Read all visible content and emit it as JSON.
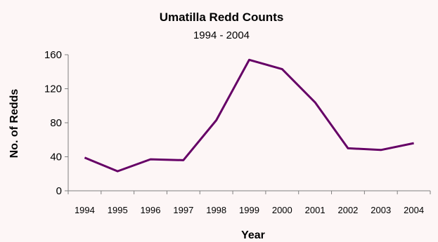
{
  "chart_data": {
    "type": "line",
    "title": "Umatilla Redd Counts",
    "subtitle": "1994 - 2004",
    "xlabel": "Year",
    "ylabel": "No. of Redds",
    "categories": [
      "1994",
      "1995",
      "1996",
      "1997",
      "1998",
      "1999",
      "2000",
      "2001",
      "2002",
      "2003",
      "2004"
    ],
    "series": [
      {
        "values": [
          39,
          23,
          37,
          36,
          83,
          154,
          143,
          104,
          50,
          48,
          56
        ]
      }
    ],
    "ylim": [
      0,
      160
    ],
    "yticks": [
      "0",
      "40",
      "80",
      "120",
      "160"
    ],
    "grid": false,
    "line_color": "#660066"
  }
}
